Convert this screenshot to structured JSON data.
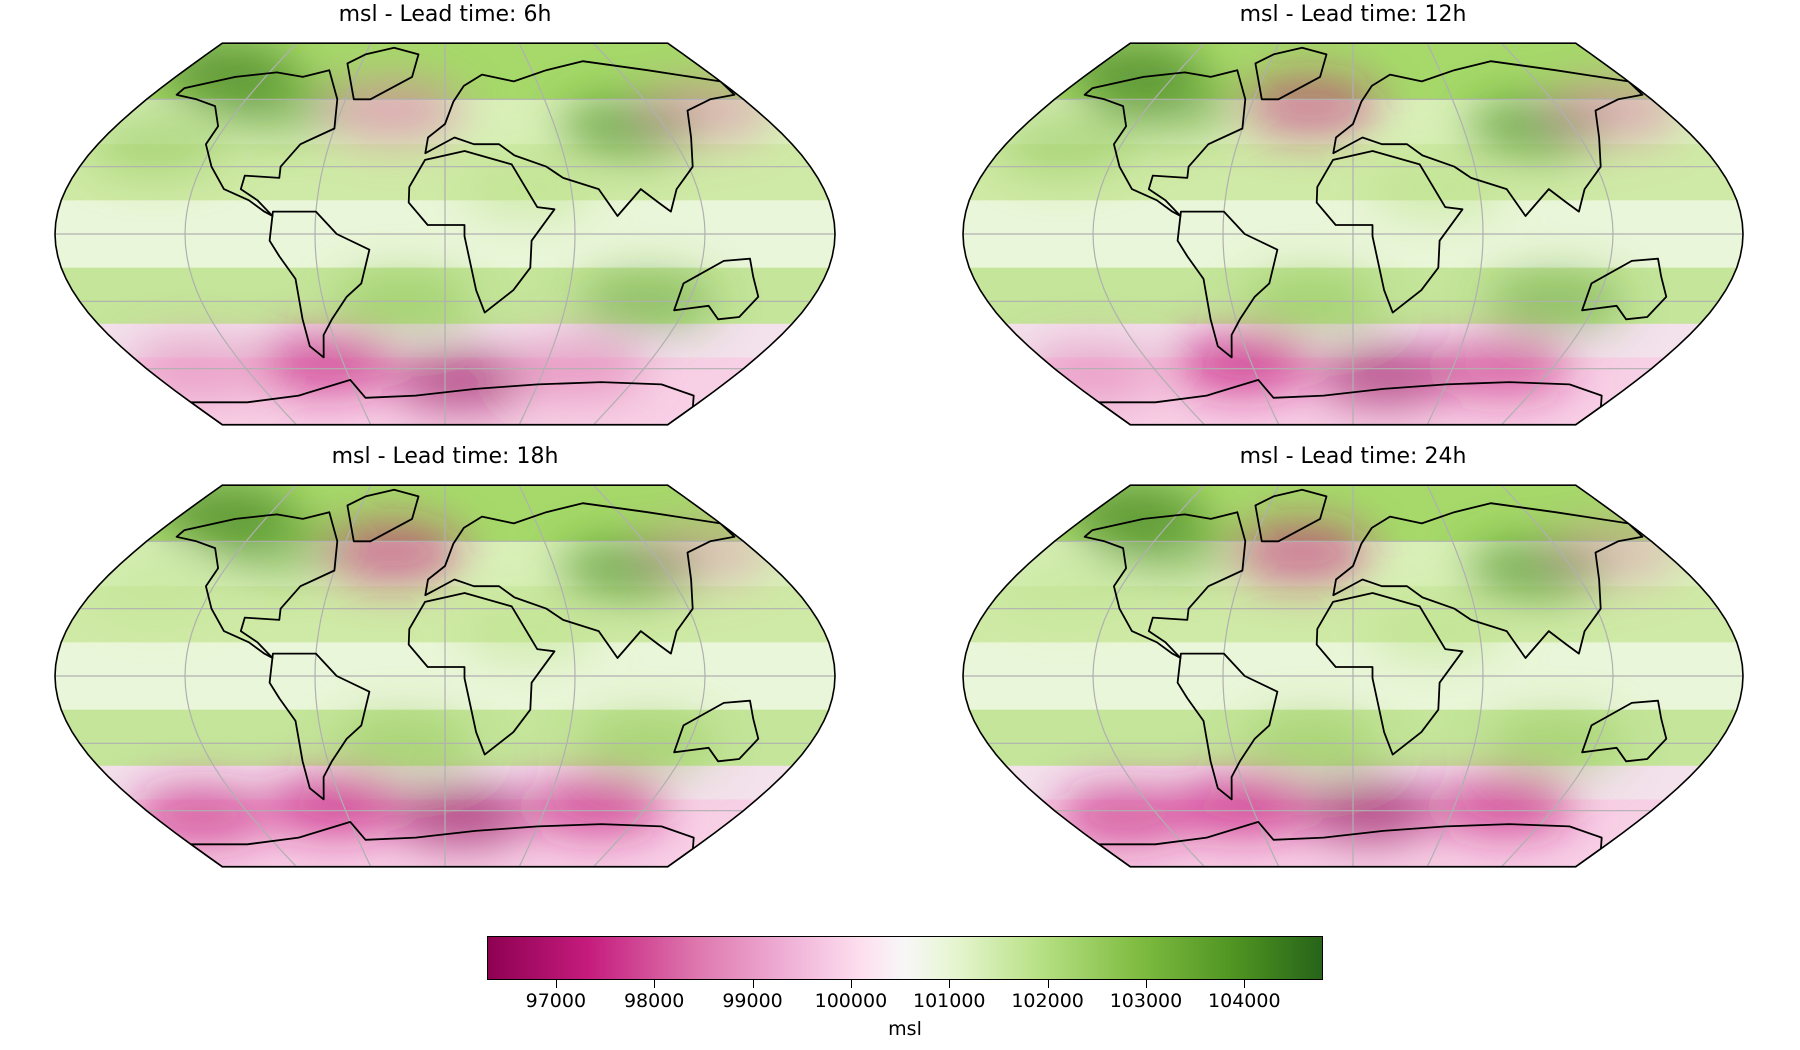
{
  "panels": [
    {
      "title": "msl - Lead time: 6h"
    },
    {
      "title": "msl - Lead time: 12h"
    },
    {
      "title": "msl - Lead time: 18h"
    },
    {
      "title": "msl - Lead time: 24h"
    }
  ],
  "colorbar": {
    "label": "msl",
    "ticks": [
      "97000",
      "98000",
      "99000",
      "100000",
      "101000",
      "102000",
      "103000",
      "104000"
    ],
    "range": [
      96300,
      104800
    ],
    "colormap": "PiYG",
    "colors": [
      "#8e0152",
      "#c51b7d",
      "#de77ae",
      "#f1b6da",
      "#fde0ef",
      "#f7f7f7",
      "#e6f5d0",
      "#b8e186",
      "#7fbc41",
      "#4d9221",
      "#276419"
    ]
  }
}
